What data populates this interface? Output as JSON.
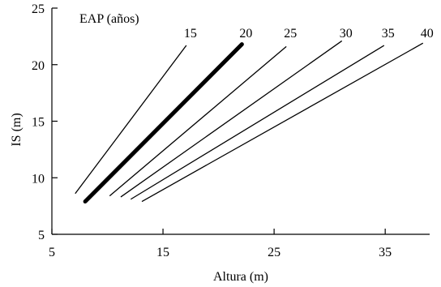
{
  "chart_data": {
    "type": "line",
    "xlabel": "Altura (m)",
    "ylabel": "IS (m)",
    "legend_title": "EAP (años)",
    "xlim": [
      5,
      39
    ],
    "ylim": [
      5,
      25
    ],
    "xticks": [
      5,
      15,
      25,
      35
    ],
    "yticks": [
      5,
      10,
      15,
      20,
      25
    ],
    "colors": {
      "line": "#000000",
      "axis": "#000000"
    },
    "series": [
      {
        "name": "15",
        "x": [
          7.1,
          17.1
        ],
        "y": [
          8.6,
          21.7
        ],
        "emphasis": false
      },
      {
        "name": "20",
        "x": [
          8.0,
          22.1
        ],
        "y": [
          7.9,
          21.8
        ],
        "emphasis": true
      },
      {
        "name": "25",
        "x": [
          10.2,
          26.1
        ],
        "y": [
          8.4,
          21.6
        ],
        "emphasis": false
      },
      {
        "name": "30",
        "x": [
          11.2,
          31.1
        ],
        "y": [
          8.3,
          22.1
        ],
        "emphasis": false
      },
      {
        "name": "35",
        "x": [
          12.1,
          34.9
        ],
        "y": [
          8.1,
          21.7
        ],
        "emphasis": false
      },
      {
        "name": "40",
        "x": [
          13.1,
          38.4
        ],
        "y": [
          7.9,
          21.9
        ],
        "emphasis": false
      }
    ]
  }
}
